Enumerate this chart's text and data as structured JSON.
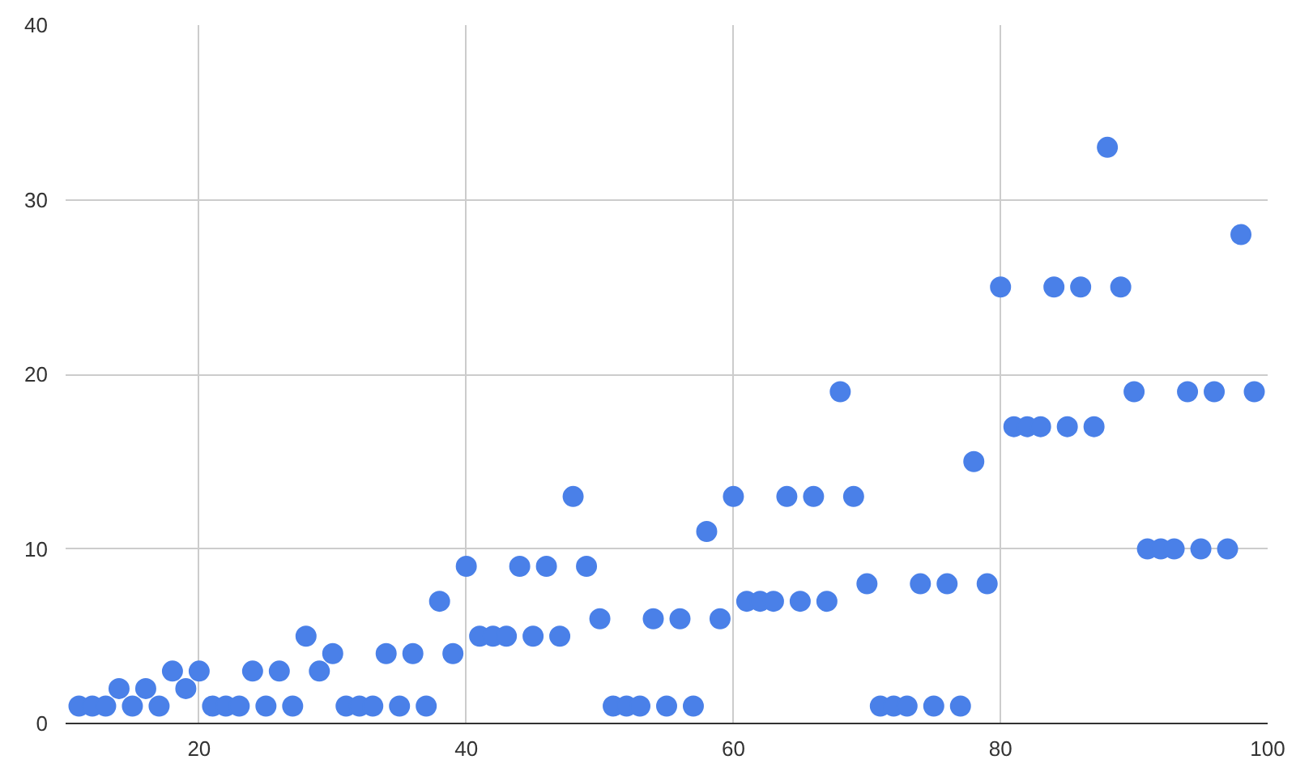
{
  "chart_data": {
    "type": "scatter",
    "color": "#4a80e8",
    "marker": "circle",
    "grid": true,
    "xlim": [
      10,
      100
    ],
    "xticks": [
      20,
      40,
      60,
      80,
      100
    ],
    "ylim": [
      0,
      40
    ],
    "yticks": [
      0,
      10,
      20,
      30,
      40
    ],
    "x": [
      11,
      12,
      13,
      14,
      15,
      16,
      17,
      18,
      19,
      20,
      21,
      22,
      23,
      24,
      25,
      26,
      27,
      28,
      29,
      30,
      31,
      32,
      33,
      34,
      35,
      36,
      37,
      38,
      39,
      40,
      41,
      42,
      43,
      44,
      45,
      46,
      47,
      48,
      49,
      50,
      51,
      52,
      53,
      54,
      55,
      56,
      57,
      58,
      59,
      60,
      61,
      62,
      63,
      64,
      65,
      66,
      67,
      68,
      69,
      70,
      71,
      72,
      73,
      74,
      75,
      76,
      77,
      78,
      79,
      80,
      81,
      82,
      83,
      84,
      85,
      86,
      87,
      88,
      89,
      90,
      91,
      92,
      93,
      94,
      95,
      96,
      97,
      98,
      99
    ],
    "values": [
      1,
      1,
      1,
      2,
      1,
      2,
      1,
      3,
      2,
      3,
      1,
      1,
      1,
      3,
      1,
      3,
      1,
      5,
      3,
      4,
      1,
      1,
      1,
      4,
      1,
      4,
      1,
      7,
      4,
      9,
      5,
      5,
      5,
      9,
      5,
      9,
      5,
      13,
      9,
      6,
      1,
      1,
      1,
      6,
      1,
      6,
      1,
      11,
      6,
      13,
      7,
      7,
      7,
      13,
      7,
      13,
      7,
      19,
      13,
      8,
      1,
      1,
      1,
      8,
      1,
      8,
      1,
      15,
      8,
      25,
      17,
      17,
      17,
      25,
      17,
      25,
      17,
      33,
      25,
      19,
      10,
      10,
      10,
      19,
      10,
      19,
      10,
      28,
      19
    ]
  }
}
